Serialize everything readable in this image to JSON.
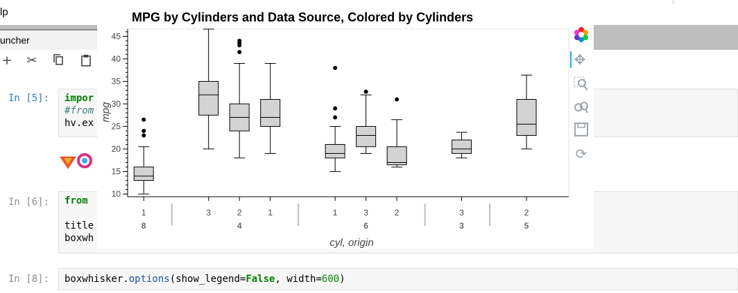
{
  "menubar": {
    "help_label": "lp"
  },
  "tabs": [
    {
      "label": "uncher"
    }
  ],
  "toolbar": {
    "icons": [
      "plus-icon",
      "scissors-icon",
      "copy-icon",
      "paste-icon"
    ]
  },
  "cells": [
    {
      "prompt": "In [5]:",
      "lines": [
        "impor",
        "#from",
        "hv.ex"
      ]
    },
    {
      "prompt": "In [6]:",
      "lines": [
        "from",
        "",
        "title",
        "boxwh"
      ]
    },
    {
      "prompt": "In [8]:",
      "code_parts": [
        "boxwhisker.",
        "options",
        "(show_legend=",
        "False",
        ", width=",
        "600",
        ")"
      ]
    }
  ],
  "plot": {
    "tools": [
      "bokeh-logo-icon",
      "pan-icon",
      "box-zoom-icon",
      "wheel-zoom-icon",
      "save-icon",
      "reset-icon"
    ]
  },
  "chart_data": {
    "type": "box",
    "title": "MPG by Cylinders and Data Source, Colored by Cylinders",
    "xlabel": "cyl, origin",
    "ylabel": "mpg",
    "ylim": [
      9.4,
      46.6
    ],
    "yticks": [
      10,
      15,
      20,
      25,
      30,
      35,
      40,
      45
    ],
    "groups": [
      {
        "cyl": "8",
        "boxes": [
          {
            "origin": "1",
            "min": 10,
            "q1": 13,
            "median": 14,
            "q3": 16,
            "max": 20.5,
            "outliers": [
              23,
              24,
              26.5
            ]
          }
        ]
      },
      {
        "cyl": "4",
        "boxes": [
          {
            "origin": "3",
            "min": 20,
            "q1": 27.5,
            "median": 32,
            "q3": 35,
            "max": 46.6,
            "outliers": []
          },
          {
            "origin": "2",
            "min": 18,
            "q1": 24,
            "median": 27,
            "q3": 30,
            "max": 39,
            "outliers": [
              41.5,
              43,
              43.5,
              44
            ]
          },
          {
            "origin": "1",
            "min": 19,
            "q1": 25,
            "median": 27,
            "q3": 31,
            "max": 39,
            "outliers": []
          }
        ]
      },
      {
        "cyl": "6",
        "boxes": [
          {
            "origin": "1",
            "min": 15,
            "q1": 18,
            "median": 19,
            "q3": 21,
            "max": 25,
            "outliers": [
              27,
              29,
              38
            ]
          },
          {
            "origin": "3",
            "min": 19,
            "q1": 20.5,
            "median": 23,
            "q3": 25,
            "max": 32,
            "outliers": [
              32.7
            ]
          },
          {
            "origin": "2",
            "min": 16,
            "q1": 16.5,
            "median": 17,
            "q3": 20.5,
            "max": 26.5,
            "outliers": [
              31
            ]
          }
        ]
      },
      {
        "cyl": "3",
        "boxes": [
          {
            "origin": "3",
            "min": 18,
            "q1": 19,
            "median": 20,
            "q3": 22,
            "max": 23.7,
            "outliers": []
          }
        ]
      },
      {
        "cyl": "5",
        "boxes": [
          {
            "origin": "2",
            "min": 20,
            "q1": 23,
            "median": 25.5,
            "q3": 31,
            "max": 36.4,
            "outliers": []
          }
        ]
      }
    ],
    "box_fill": "#d3d3d3",
    "grid": false,
    "legend": false
  }
}
